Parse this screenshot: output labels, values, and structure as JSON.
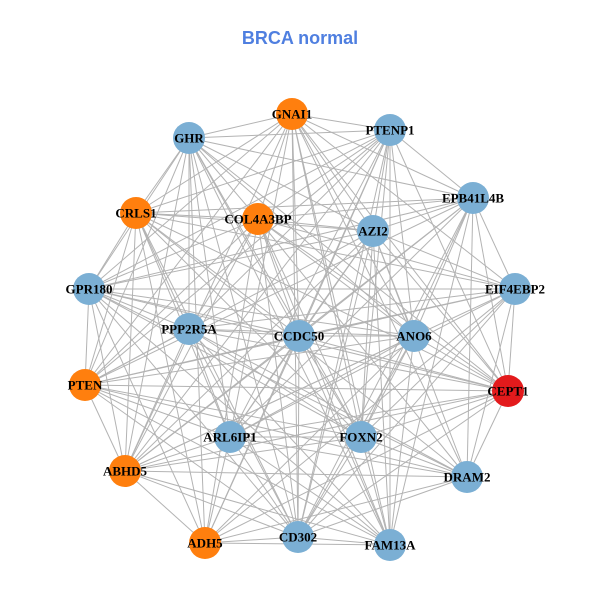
{
  "title": "BRCA normal",
  "colors": {
    "title": "#4F7FE0",
    "edge": "#B3B3B3",
    "blue": "#7BAFD4",
    "orange": "#FF7F0E",
    "red": "#E31A1C"
  },
  "nodes": [
    {
      "id": "GNAI1",
      "label": "GNAI1",
      "color": "orange"
    },
    {
      "id": "PTENP1",
      "label": "PTENP1",
      "color": "blue"
    },
    {
      "id": "GHR",
      "label": "GHR",
      "color": "blue"
    },
    {
      "id": "EPB41L4B",
      "label": "EPB41L4B",
      "color": "blue"
    },
    {
      "id": "CRLS1",
      "label": "CRLS1",
      "color": "orange"
    },
    {
      "id": "COL4A3BP",
      "label": "COL4A3BP",
      "color": "orange"
    },
    {
      "id": "AZI2",
      "label": "AZI2",
      "color": "blue"
    },
    {
      "id": "GPR180",
      "label": "GPR180",
      "color": "blue"
    },
    {
      "id": "EIF4EBP2",
      "label": "EIF4EBP2",
      "color": "blue"
    },
    {
      "id": "PPP2R5A",
      "label": "PPP2R5A",
      "color": "blue"
    },
    {
      "id": "CCDC50",
      "label": "CCDC50",
      "color": "blue"
    },
    {
      "id": "ANO6",
      "label": "ANO6",
      "color": "blue"
    },
    {
      "id": "PTEN",
      "label": "PTEN",
      "color": "orange"
    },
    {
      "id": "CEPT1",
      "label": "CEPT1",
      "color": "red"
    },
    {
      "id": "ARL6IP1",
      "label": "ARL6IP1",
      "color": "blue"
    },
    {
      "id": "FOXN2",
      "label": "FOXN2",
      "color": "blue"
    },
    {
      "id": "ABHD5",
      "label": "ABHD5",
      "color": "orange"
    },
    {
      "id": "DRAM2",
      "label": "DRAM2",
      "color": "blue"
    },
    {
      "id": "ADH5",
      "label": "ADH5",
      "color": "orange"
    },
    {
      "id": "CD302",
      "label": "CD302",
      "color": "blue"
    },
    {
      "id": "FAM13A",
      "label": "FAM13A",
      "color": "blue"
    }
  ]
}
